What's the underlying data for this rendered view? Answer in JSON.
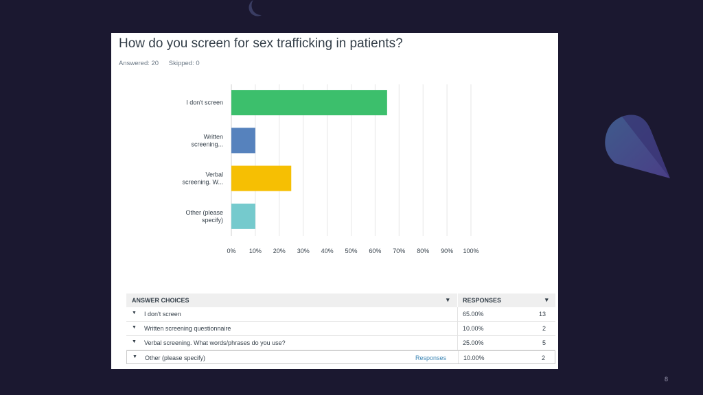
{
  "survey": {
    "question": "How do you screen for sex trafficking in patients?",
    "answered": "Answered: 20",
    "skipped": "Skipped: 0"
  },
  "chart_data": {
    "type": "bar",
    "orientation": "horizontal",
    "categories": [
      "I don't screen",
      "Written screening...",
      "Verbal screening. W...",
      "Other (please specify)"
    ],
    "category_lines": [
      [
        "I don't screen"
      ],
      [
        "Written",
        "screening..."
      ],
      [
        "Verbal",
        "screening. W..."
      ],
      [
        "Other (please",
        "specify)"
      ]
    ],
    "values": [
      65,
      10,
      25,
      10
    ],
    "colors": [
      "#3cbf6c",
      "#5682bd",
      "#f6bf03",
      "#75cacd"
    ],
    "xlim": [
      0,
      100
    ],
    "ticks": [
      "0%",
      "10%",
      "20%",
      "30%",
      "40%",
      "50%",
      "60%",
      "70%",
      "80%",
      "90%",
      "100%"
    ],
    "tick_values": [
      0,
      10,
      20,
      30,
      40,
      50,
      60,
      70,
      80,
      90,
      100
    ],
    "grid": true,
    "title": "",
    "xlabel": "",
    "ylabel": ""
  },
  "table": {
    "header_choices": "ANSWER CHOICES",
    "header_responses": "RESPONSES",
    "caret": "▾",
    "row_arrow": "▼",
    "rows": [
      {
        "label": "I don't screen",
        "pct": "65.00%",
        "count": "13"
      },
      {
        "label": "Written screening questionnaire",
        "pct": "10.00%",
        "count": "2"
      },
      {
        "label": "Verbal screening. What words/phrases do you use?",
        "pct": "25.00%",
        "count": "5"
      },
      {
        "label": "Other (please specify)",
        "pct": "10.00%",
        "count": "2",
        "link": "Responses"
      }
    ]
  },
  "page_number": "8",
  "colors": {
    "background": "#1b1830",
    "card": "#ffffff",
    "link": "#3c86b5"
  }
}
